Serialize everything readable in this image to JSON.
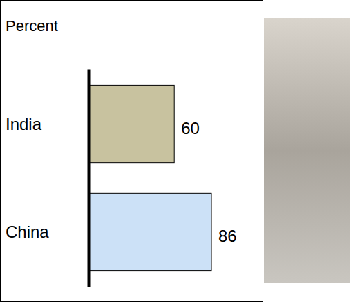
{
  "chart_data": {
    "type": "bar",
    "orientation": "horizontal",
    "title": "Percent",
    "categories": [
      "India",
      "China"
    ],
    "values": [
      60,
      86
    ],
    "colors": [
      "#c8c29f",
      "#cce1f7"
    ],
    "xlim": [
      0,
      100
    ],
    "xticks": [],
    "data_labels": true,
    "tick_labels": "y"
  }
}
